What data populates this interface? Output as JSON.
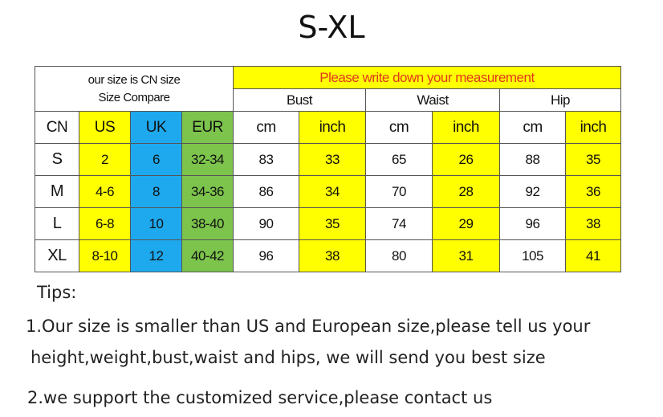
{
  "title": "S-XL",
  "header": {
    "cn_note_line1": "our size is CN size",
    "cn_note_line2": "Size Compare",
    "measure_note": "Please write down your  measurement",
    "groups": [
      "Bust",
      "Waist",
      "Hip"
    ],
    "columns": [
      "CN",
      "US",
      "UK",
      "EUR",
      "cm",
      "inch",
      "cm",
      "inch",
      "cm",
      "inch"
    ]
  },
  "rows": [
    [
      "S",
      "2",
      "6",
      "32-34",
      "83",
      "33",
      "65",
      "26",
      "88",
      "35"
    ],
    [
      "M",
      "4-6",
      "8",
      "34-36",
      "86",
      "34",
      "70",
      "28",
      "92",
      "36"
    ],
    [
      "L",
      "6-8",
      "10",
      "38-40",
      "90",
      "35",
      "74",
      "29",
      "96",
      "38"
    ],
    [
      "XL",
      "8-10",
      "12",
      "40-42",
      "96",
      "38",
      "80",
      "31",
      "105",
      "41"
    ]
  ],
  "tips": {
    "heading": "Tips:",
    "line1": "1.Our size is smaller than US and European size,please tell us your",
    "line2": "height,weight,bust,waist and hips, we will send you best size",
    "line3": "2.we support the customized service,please contact us"
  },
  "colors": {
    "yellow": "#ffff00",
    "blue": "#1ea9ef",
    "green": "#7cc44c",
    "red_text": "#e23a1c"
  }
}
